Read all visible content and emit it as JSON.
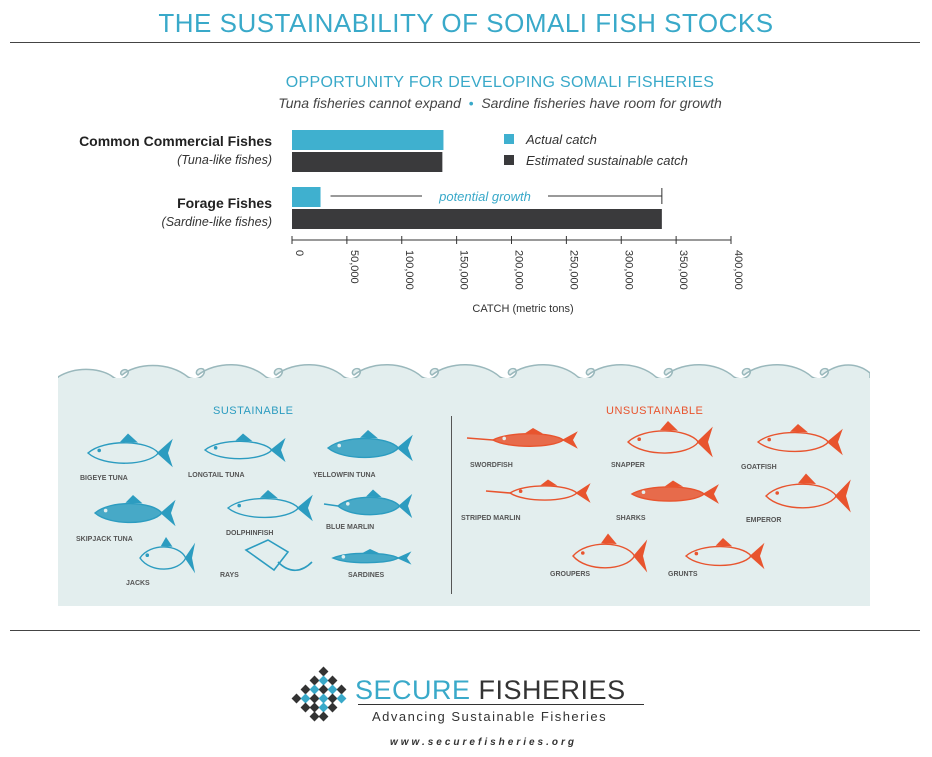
{
  "header": {
    "title": "THE SUSTAINABILITY OF SOMALI FISH STOCKS",
    "subtitle": "OPPORTUNITY FOR DEVELOPING SOMALI FISHERIES",
    "tagline_left": "Tuna fisheries cannot expand",
    "tagline_right": "Sardine fisheries have room for growth"
  },
  "chart_data": {
    "type": "bar",
    "orientation": "horizontal",
    "categories": [
      {
        "name": "Common Commercial Fishes",
        "sub": "(Tuna-like fishes)"
      },
      {
        "name": "Forage Fishes",
        "sub": "(Sardine-like fishes)"
      }
    ],
    "series": [
      {
        "name": "Actual catch",
        "color": "#3fb0cf",
        "values": [
          138000,
          26000
        ]
      },
      {
        "name": "Estimated sustainable catch",
        "color": "#3a3a3c",
        "values": [
          137000,
          337000
        ]
      }
    ],
    "annotation": "potential growth",
    "xlabel": "CATCH (metric tons)",
    "xlim": [
      0,
      400000
    ],
    "ticks": [
      "0",
      "50,000",
      "100,000",
      "150,000",
      "200,000",
      "250,000",
      "300,000",
      "350,000",
      "400,000"
    ],
    "legend_position": "right-of-first-group"
  },
  "sea": {
    "sustainable_heading": "SUSTAINABLE",
    "unsustainable_heading": "UNSUSTAINABLE",
    "sustainable_color": "#2c9cc0",
    "unsustainable_color": "#e8542e",
    "sustainable_fish": [
      "BIGEYE TUNA",
      "LONGTAIL TUNA",
      "YELLOWFIN TUNA",
      "SKIPJACK TUNA",
      "DOLPHINFISH",
      "BLUE MARLIN",
      "JACKS",
      "RAYS",
      "SARDINES"
    ],
    "unsustainable_fish": [
      "SWORDFISH",
      "SNAPPER",
      "GOATFISH",
      "STRIPED MARLIN",
      "SHARKS",
      "EMPEROR",
      "GROUPERS",
      "GRUNTS"
    ]
  },
  "footer": {
    "brand_light": "SECURE",
    "brand_dark": "FISHERIES",
    "tagline": "Advancing Sustainable Fisheries",
    "url": "www.securefisheries.org"
  }
}
